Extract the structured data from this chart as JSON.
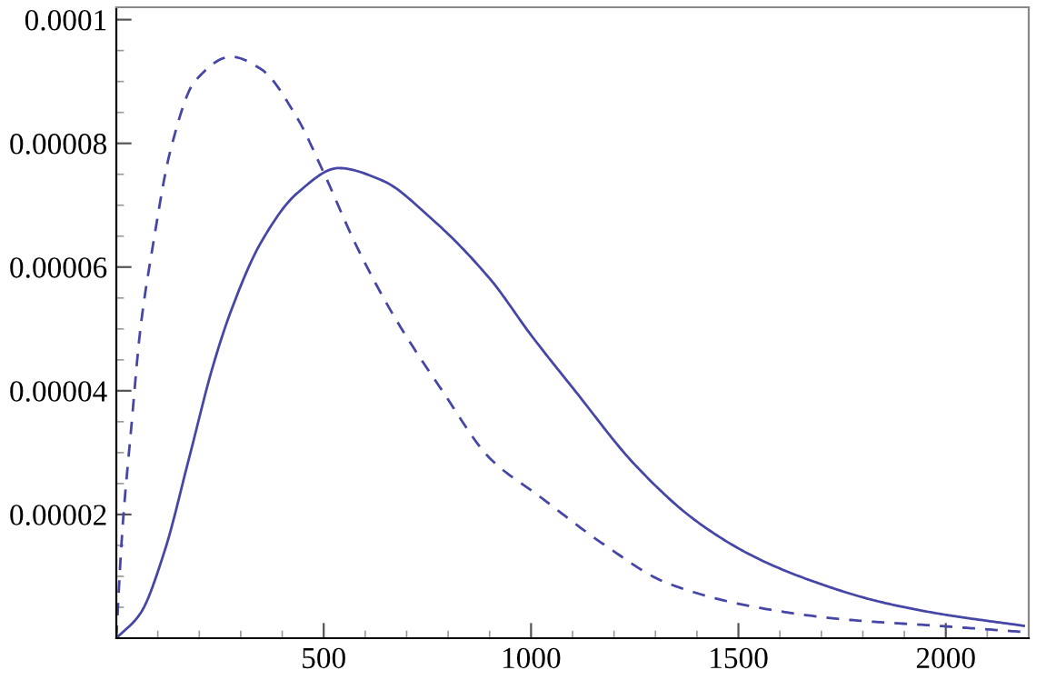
{
  "chart_data": {
    "type": "line",
    "xlim": [
      0,
      2200
    ],
    "ylim": [
      0,
      0.000102
    ],
    "xticks": [
      500,
      1000,
      1500,
      2000
    ],
    "yticks": [
      {
        "value": 2e-05,
        "label": "0.00002"
      },
      {
        "value": 4e-05,
        "label": "0.00004"
      },
      {
        "value": 6e-05,
        "label": "0.00006"
      },
      {
        "value": 8e-05,
        "label": "0.00008"
      },
      {
        "value": 0.0001,
        "label": "0.0001"
      }
    ],
    "grid": false,
    "legend": false,
    "series": [
      {
        "color": "#4646a6",
        "line_style": "solid",
        "x": [
          0,
          58,
          116,
          175,
          233,
          277,
          349,
          437,
          536,
          641,
          757,
          902,
          1000,
          1106,
          1251,
          1397,
          1543,
          1688,
          1834,
          1980,
          2188
        ],
        "values": [
          0,
          4e-06,
          1.4e-05,
          2.9e-05,
          4.4e-05,
          5.3e-05,
          6.4e-05,
          7.2e-05,
          7.6e-05,
          7.4e-05,
          6.8e-05,
          5.8e-05,
          4.9e-05,
          4e-05,
          2.8e-05,
          1.9e-05,
          1.3e-05,
          9e-06,
          6e-06,
          4e-06,
          2e-06
        ]
      },
      {
        "color": "#4646a6",
        "line_style": "dashed",
        "x": [
          0,
          14,
          36,
          58,
          87,
          131,
          189,
          277,
          349,
          437,
          495,
          582,
          670,
          786,
          902,
          1019,
          1179,
          1325,
          1543,
          1761,
          1980,
          2188
        ],
        "values": [
          0,
          1.7e-05,
          3.4e-05,
          5e-05,
          6.3e-05,
          7.9e-05,
          9e-05,
          9.4e-05,
          9.2e-05,
          8.4e-05,
          7.6e-05,
          6.3e-05,
          5.2e-05,
          4e-05,
          2.9e-05,
          2.3e-05,
          1.5e-05,
          9e-06,
          5e-06,
          3e-06,
          2e-06,
          1e-06
        ]
      }
    ]
  }
}
